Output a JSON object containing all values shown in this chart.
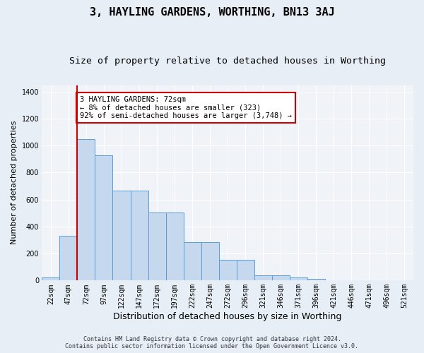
{
  "title": "3, HAYLING GARDENS, WORTHING, BN13 3AJ",
  "subtitle": "Size of property relative to detached houses in Worthing",
  "xlabel": "Distribution of detached houses by size in Worthing",
  "ylabel": "Number of detached properties",
  "footer_line1": "Contains HM Land Registry data © Crown copyright and database right 2024.",
  "footer_line2": "Contains public sector information licensed under the Open Government Licence v3.0.",
  "bar_labels": [
    "22sqm",
    "47sqm",
    "72sqm",
    "97sqm",
    "122sqm",
    "147sqm",
    "172sqm",
    "197sqm",
    "222sqm",
    "247sqm",
    "272sqm",
    "296sqm",
    "321sqm",
    "346sqm",
    "371sqm",
    "396sqm",
    "421sqm",
    "446sqm",
    "471sqm",
    "496sqm",
    "521sqm"
  ],
  "bar_values": [
    20,
    330,
    1050,
    930,
    665,
    665,
    505,
    505,
    285,
    285,
    150,
    150,
    35,
    35,
    20,
    10,
    0,
    0,
    0,
    0,
    0
  ],
  "bar_color": "#c5d8ed",
  "bar_edge_color": "#5b9bd5",
  "vline_color": "#cc0000",
  "annotation_text": "3 HAYLING GARDENS: 72sqm\n← 8% of detached houses are smaller (323)\n92% of semi-detached houses are larger (3,748) →",
  "annotation_box_color": "#cc0000",
  "ylim": [
    0,
    1450
  ],
  "yticks": [
    0,
    200,
    400,
    600,
    800,
    1000,
    1200,
    1400
  ],
  "bg_color": "#e8eef5",
  "plot_bg_color": "#f0f4f9",
  "title_fontsize": 11,
  "subtitle_fontsize": 9.5,
  "xlabel_fontsize": 9,
  "ylabel_fontsize": 8,
  "tick_fontsize": 7,
  "annotation_fontsize": 7.5,
  "footer_fontsize": 6
}
